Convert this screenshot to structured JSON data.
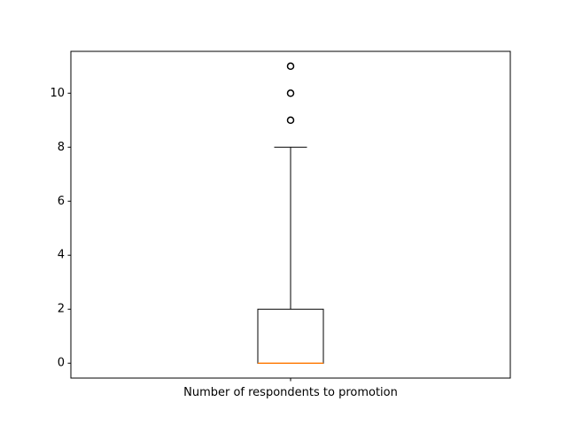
{
  "chart_data": {
    "type": "box",
    "categories": [
      "Number of respondents to promotion"
    ],
    "series": [
      {
        "whisker_low": 0,
        "q1": 0,
        "median": 0,
        "q3": 2,
        "whisker_high": 8,
        "outliers": [
          9,
          10,
          11
        ]
      }
    ],
    "y_ticks": [
      "0",
      "2",
      "4",
      "6",
      "8",
      "10"
    ],
    "y_tick_values": [
      0,
      2,
      4,
      6,
      8,
      10
    ],
    "ylim": [
      -0.55,
      11.55
    ],
    "grid": false,
    "colors": {
      "box": "#000000",
      "median": "#ff7f0e",
      "axes": "#000000"
    }
  }
}
